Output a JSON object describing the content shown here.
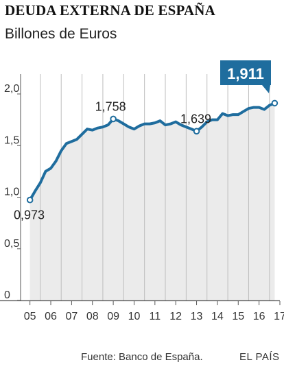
{
  "header": {
    "title": "DEUDA EXTERNA DE ESPAÑA",
    "subtitle": "Billones de Euros"
  },
  "footer": {
    "source": "Fuente: Banco de España.",
    "brand": "EL PAÍS"
  },
  "colors": {
    "line": "#1f6d9e",
    "area": "#ebebeb",
    "callout_bg": "#1f6d9e",
    "grid": "#bdbdbd",
    "axis": "#555555"
  },
  "chart_data": {
    "type": "area",
    "title": "DEUDA EXTERNA DE ESPAÑA",
    "subtitle": "Billones de Euros",
    "xlabel": "",
    "ylabel": "",
    "ylim": [
      0,
      2.1
    ],
    "xlim": [
      2004.55,
      2017.0
    ],
    "grid": "vertical",
    "y_ticks": [
      {
        "value": 0,
        "label": "0"
      },
      {
        "value": 0.5,
        "label": "0,5"
      },
      {
        "value": 1.0,
        "label": "1,0"
      },
      {
        "value": 1.5,
        "label": "1,5"
      },
      {
        "value": 2.0,
        "label": "2,0"
      }
    ],
    "x_ticks": [
      "05",
      "06",
      "07",
      "08",
      "09",
      "10",
      "11",
      "12",
      "13",
      "14",
      "15",
      "16",
      "17"
    ],
    "series": [
      {
        "x": [
          2005.0,
          2005.25,
          2005.5,
          2005.75,
          2006.0,
          2006.25,
          2006.5,
          2006.75,
          2007.0,
          2007.25,
          2007.5,
          2007.75,
          2008.0,
          2008.25,
          2008.5,
          2008.75,
          2009.0,
          2009.25,
          2009.5,
          2009.75,
          2010.0,
          2010.25,
          2010.5,
          2010.75,
          2011.0,
          2011.25,
          2011.5,
          2011.75,
          2012.0,
          2012.25,
          2012.5,
          2012.75,
          2013.0,
          2013.25,
          2013.5,
          2013.75,
          2014.0,
          2014.25,
          2014.5,
          2014.75,
          2015.0,
          2015.25,
          2015.5,
          2015.75,
          2016.0,
          2016.25,
          2016.5,
          2016.75
        ],
        "values": [
          0.973,
          1.06,
          1.14,
          1.25,
          1.28,
          1.35,
          1.45,
          1.52,
          1.54,
          1.56,
          1.61,
          1.66,
          1.65,
          1.67,
          1.68,
          1.7,
          1.758,
          1.74,
          1.71,
          1.68,
          1.66,
          1.69,
          1.71,
          1.71,
          1.72,
          1.74,
          1.7,
          1.71,
          1.73,
          1.7,
          1.68,
          1.66,
          1.639,
          1.68,
          1.73,
          1.75,
          1.75,
          1.81,
          1.79,
          1.8,
          1.8,
          1.83,
          1.86,
          1.87,
          1.87,
          1.85,
          1.89,
          1.911
        ]
      }
    ],
    "annotations": [
      {
        "x": 2005.0,
        "value": 0.973,
        "label": "0,973"
      },
      {
        "x": 2009.0,
        "value": 1.758,
        "label": "1,758"
      },
      {
        "x": 2013.0,
        "value": 1.639,
        "label": "1,639"
      }
    ],
    "callout": {
      "x": 2016.75,
      "value": 1.911,
      "label": "1,911"
    }
  }
}
